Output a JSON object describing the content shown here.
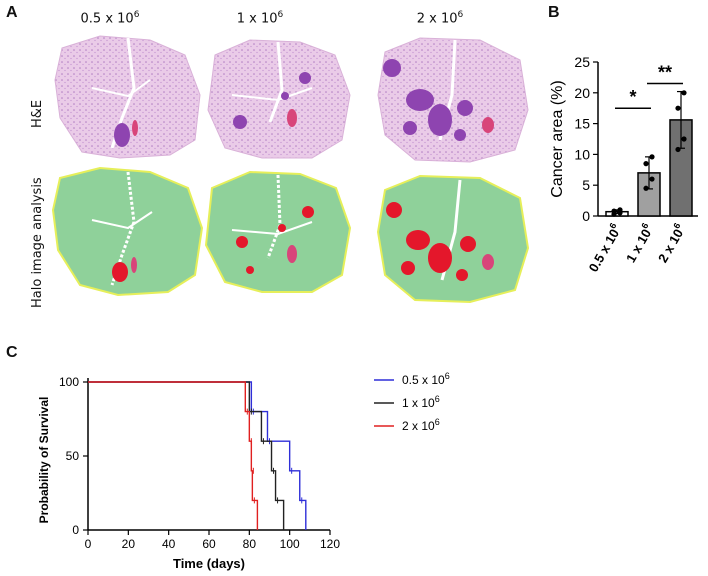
{
  "panels": {
    "a": "A",
    "b": "B",
    "c": "C"
  },
  "panel_a": {
    "columns": [
      {
        "base": "0.5 x 10",
        "exp": "6"
      },
      {
        "base": "1 x 10",
        "exp": "6"
      },
      {
        "base": "2 x 10",
        "exp": "6"
      }
    ],
    "rows": [
      "H&E",
      "Halo image analysis"
    ],
    "colors": {
      "he_tissue": "#e9c6e6",
      "he_tumor": "#9a4fb8",
      "halo_tissue": "#8fd19a",
      "halo_tumor": "#e4172b",
      "halo_outline": "#e6ef5a"
    }
  },
  "chart_data": [
    {
      "type": "bar",
      "panel": "B",
      "categories": [
        "0.5 x 10^6",
        "1 x 10^6",
        "2 x 10^6"
      ],
      "values": [
        0.7,
        7.0,
        15.6
      ],
      "error": [
        0.3,
        2.6,
        4.6
      ],
      "points": [
        [
          0.3,
          0.5,
          0.8,
          1.0
        ],
        [
          4.5,
          6.0,
          8.5,
          9.6
        ],
        [
          10.8,
          12.5,
          17.5,
          20.0
        ]
      ],
      "bar_colors": [
        "#ffffff",
        "#a0a0a0",
        "#707070"
      ],
      "ylabel": "Cancer area (%)",
      "ylim": [
        0,
        25
      ],
      "yticks": [
        0,
        5,
        10,
        15,
        20,
        25
      ],
      "significance": [
        {
          "from": 0,
          "to": 1,
          "label": "*"
        },
        {
          "from": 1,
          "to": 2,
          "label": "**"
        }
      ]
    },
    {
      "type": "line",
      "panel": "C",
      "xlabel": "Time (days)",
      "ylabel": "Probability of Survival",
      "xlim": [
        0,
        120
      ],
      "ylim": [
        0,
        100
      ],
      "xticks": [
        0,
        20,
        40,
        60,
        80,
        100,
        120
      ],
      "yticks": [
        0,
        50,
        100
      ],
      "legend_position": "top-right",
      "series": [
        {
          "name": "0.5 x 10^6",
          "legend_base": "0.5 x 10",
          "legend_exp": "6",
          "color": "#2f2fd8",
          "steps": [
            [
              0,
              100
            ],
            [
              81,
              80
            ],
            [
              89,
              60
            ],
            [
              100,
              40
            ],
            [
              105,
              20
            ],
            [
              108,
              0
            ]
          ]
        },
        {
          "name": "1 x 10^6",
          "legend_base": "1 x 10",
          "legend_exp": "6",
          "color": "#222222",
          "steps": [
            [
              0,
              100
            ],
            [
              80,
              80
            ],
            [
              86,
              60
            ],
            [
              91,
              40
            ],
            [
              93,
              20
            ],
            [
              97,
              0
            ]
          ]
        },
        {
          "name": "2 x 10^6",
          "legend_base": "2 x 10",
          "legend_exp": "6",
          "color": "#e02020",
          "steps": [
            [
              0,
              100
            ],
            [
              78,
              80
            ],
            [
              80,
              60
            ],
            [
              81,
              40
            ],
            [
              81.5,
              20
            ],
            [
              84,
              0
            ]
          ]
        }
      ]
    }
  ]
}
